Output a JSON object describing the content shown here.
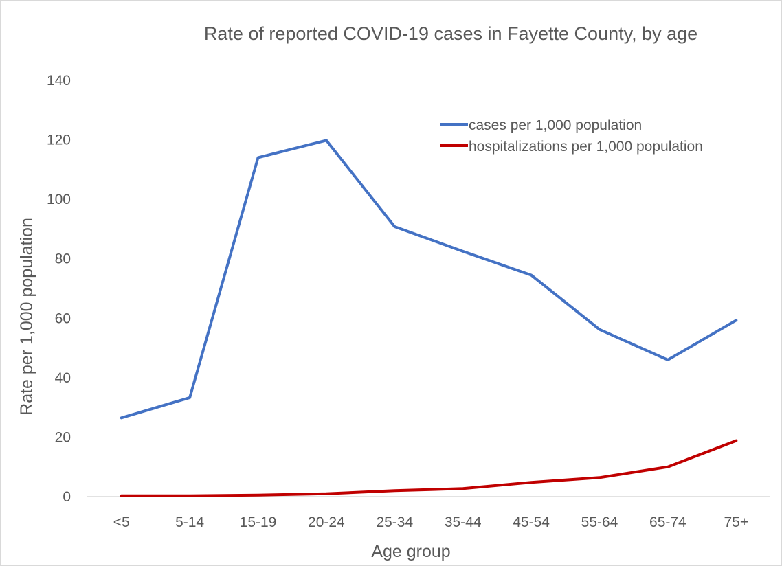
{
  "chart_data": {
    "type": "line",
    "title": "Rate of reported COVID-19 cases in Fayette County, by age",
    "xlabel": "Age group",
    "ylabel": "Rate per 1,000 population",
    "categories": [
      "<5",
      "5-14",
      "15-19",
      "20-24",
      "25-34",
      "35-44",
      "45-54",
      "55-64",
      "65-74",
      "75+"
    ],
    "ylim": [
      0,
      140
    ],
    "yticks": [
      "0",
      "20",
      "40",
      "60",
      "80",
      "100",
      "120",
      "140"
    ],
    "grid": false,
    "legend_position": "top-right",
    "series": [
      {
        "name": "cases per 1,000 population",
        "color": "#4472c4",
        "values": [
          26.5,
          33.3,
          114.0,
          119.8,
          90.8,
          82.5,
          74.5,
          56.2,
          46.0,
          59.3
        ]
      },
      {
        "name": "hospitalizations per 1,000 population",
        "color": "#c00000",
        "values": [
          0.3,
          0.3,
          0.5,
          1.0,
          2.0,
          2.7,
          4.8,
          6.4,
          10.0,
          18.8
        ]
      }
    ]
  }
}
